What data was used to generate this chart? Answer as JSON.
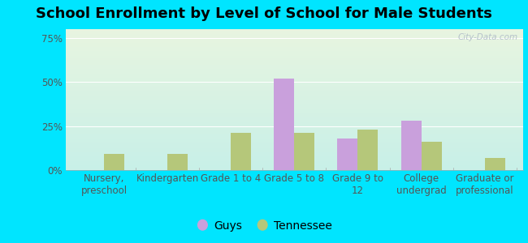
{
  "title": "School Enrollment by Level of School for Male Students",
  "categories": [
    "Nursery,\npreschool",
    "Kindergarten",
    "Grade 1 to 4",
    "Grade 5 to 8",
    "Grade 9 to\n12",
    "College\nundergrad",
    "Graduate or\nprofessional"
  ],
  "guys_values": [
    0,
    0,
    0,
    52,
    18,
    28,
    0
  ],
  "tennessee_values": [
    9,
    9,
    21,
    21,
    23,
    16,
    7
  ],
  "guys_color": "#c9a0dc",
  "tennessee_color": "#b5c77a",
  "background_outer": "#00e5ff",
  "background_inner_top": "#e8f5e0",
  "background_inner_bottom": "#c8f0e8",
  "title_color": "#000000",
  "ylabel_ticks": [
    "0%",
    "25%",
    "50%",
    "75%"
  ],
  "ytick_values": [
    0,
    25,
    50,
    75
  ],
  "ylim": [
    0,
    80
  ],
  "bar_width": 0.32,
  "legend_labels": [
    "Guys",
    "Tennessee"
  ],
  "title_fontsize": 13,
  "tick_fontsize": 8.5,
  "legend_fontsize": 10,
  "watermark": "City-Data.com"
}
